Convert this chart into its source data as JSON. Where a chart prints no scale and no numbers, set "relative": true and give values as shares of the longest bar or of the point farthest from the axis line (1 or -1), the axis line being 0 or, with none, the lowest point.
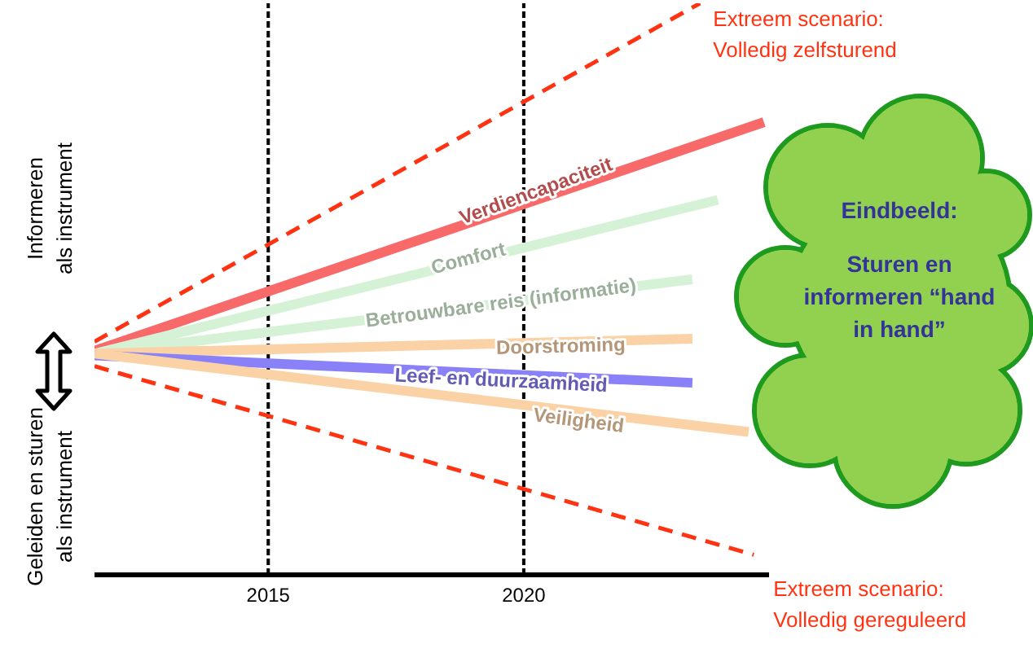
{
  "chart_data": {
    "type": "line",
    "relative": true,
    "xlim": [
      2011.6,
      2024.8
    ],
    "xticks": [
      2015,
      2020
    ],
    "legend": false,
    "grid": false,
    "marker": "none",
    "series": [
      {
        "name": "Extreem scenario: Volledig zelfsturend",
        "color": "#ff3311",
        "line_style": "dashed",
        "x": [
          2011.6,
          2023.45
        ],
        "values": [
          0.408,
          1.0
        ]
      },
      {
        "name": "Verdiencapaciteit",
        "color": "#f86a6a",
        "line_style": "solid",
        "x": [
          2011.6,
          2024.7
        ],
        "values": [
          0.392,
          0.792
        ]
      },
      {
        "name": "Comfort",
        "color": "#d6f2d6",
        "line_style": "solid",
        "x": [
          2011.6,
          2023.8
        ],
        "values": [
          0.387,
          0.656
        ]
      },
      {
        "name": "Betrouwbare reis (informatie)",
        "color": "#d6f2d6",
        "line_style": "solid",
        "x": [
          2011.6,
          2023.3
        ],
        "values": [
          0.387,
          0.517
        ]
      },
      {
        "name": "Doorstroming",
        "color": "#fad2a6",
        "line_style": "solid",
        "x": [
          2011.6,
          2023.3
        ],
        "values": [
          0.387,
          0.413
        ]
      },
      {
        "name": "Leef- en duurzaamheid",
        "color": "#8a80f8",
        "line_style": "solid",
        "x": [
          2011.6,
          2023.3
        ],
        "values": [
          0.384,
          0.336
        ]
      },
      {
        "name": "Veiligheid",
        "color": "#fad2a6",
        "line_style": "solid",
        "x": [
          2011.6,
          2024.4
        ],
        "values": [
          0.387,
          0.25
        ]
      },
      {
        "name": "Extreem scenario: Volledig gereguleerd",
        "color": "#ff3311",
        "line_style": "dashed",
        "x": [
          2011.6,
          2024.5
        ],
        "values": [
          0.365,
          0.035
        ]
      }
    ],
    "ref_lines": [
      {
        "axis": "x",
        "value": 2015,
        "color": "#000000",
        "line_style": "dashed"
      },
      {
        "axis": "x",
        "value": 2020,
        "color": "#000000",
        "line_style": "dashed"
      }
    ],
    "annotations": [
      "Informeren als instrument",
      "Geleiden en sturen als instrument",
      "Eindbeeld:",
      "Sturen en informeren “hand in hand”"
    ]
  }
}
